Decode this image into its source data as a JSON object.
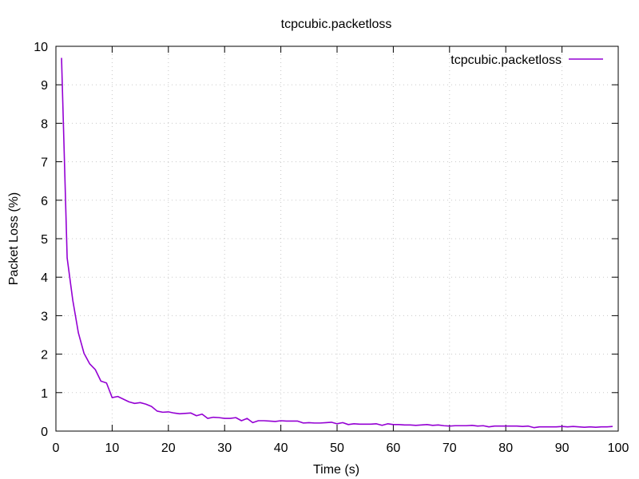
{
  "chart_data": {
    "type": "line",
    "title": "tcpcubic.packetloss",
    "xlabel": "Time (s)",
    "ylabel": "Packet Loss (%)",
    "xlim": [
      0,
      100
    ],
    "ylim": [
      0,
      10
    ],
    "x_ticks": [
      "0",
      "10",
      "20",
      "30",
      "40",
      "50",
      "60",
      "70",
      "80",
      "90",
      "100"
    ],
    "y_ticks": [
      "0",
      "1",
      "2",
      "3",
      "4",
      "5",
      "6",
      "7",
      "8",
      "9",
      "10"
    ],
    "grid": true,
    "legend_position": "top-right",
    "series": [
      {
        "name": "tcpcubic.packetloss",
        "color": "#9400d3",
        "x": [
          1,
          2,
          3,
          4,
          5,
          6,
          7,
          8,
          9,
          10,
          11,
          12,
          13,
          14,
          15,
          16,
          17,
          18,
          19,
          20,
          21,
          22,
          23,
          24,
          25,
          26,
          27,
          28,
          29,
          30,
          31,
          32,
          33,
          34,
          35,
          36,
          37,
          38,
          39,
          40,
          41,
          42,
          43,
          44,
          45,
          46,
          47,
          48,
          49,
          50,
          51,
          52,
          53,
          54,
          55,
          56,
          57,
          58,
          59,
          60,
          61,
          62,
          63,
          64,
          65,
          66,
          67,
          68,
          69,
          70,
          71,
          72,
          73,
          74,
          75,
          76,
          77,
          78,
          79,
          80,
          81,
          82,
          83,
          84,
          85,
          86,
          87,
          88,
          89,
          90,
          91,
          92,
          93,
          94,
          95,
          96,
          97,
          98,
          99
        ],
        "y": [
          9.7,
          4.5,
          3.4,
          2.55,
          2.02,
          1.75,
          1.6,
          1.3,
          1.25,
          0.87,
          0.9,
          0.83,
          0.76,
          0.72,
          0.74,
          0.7,
          0.64,
          0.52,
          0.49,
          0.5,
          0.47,
          0.45,
          0.46,
          0.47,
          0.4,
          0.44,
          0.33,
          0.36,
          0.35,
          0.33,
          0.33,
          0.35,
          0.27,
          0.33,
          0.22,
          0.27,
          0.27,
          0.26,
          0.25,
          0.27,
          0.26,
          0.26,
          0.26,
          0.21,
          0.22,
          0.21,
          0.21,
          0.22,
          0.23,
          0.19,
          0.22,
          0.17,
          0.19,
          0.18,
          0.18,
          0.18,
          0.19,
          0.15,
          0.19,
          0.17,
          0.17,
          0.16,
          0.16,
          0.15,
          0.16,
          0.17,
          0.15,
          0.16,
          0.14,
          0.13,
          0.14,
          0.14,
          0.14,
          0.15,
          0.13,
          0.14,
          0.11,
          0.13,
          0.13,
          0.13,
          0.13,
          0.13,
          0.12,
          0.13,
          0.09,
          0.11,
          0.11,
          0.11,
          0.11,
          0.12,
          0.11,
          0.12,
          0.11,
          0.1,
          0.11,
          0.1,
          0.11,
          0.11,
          0.12
        ]
      }
    ]
  }
}
